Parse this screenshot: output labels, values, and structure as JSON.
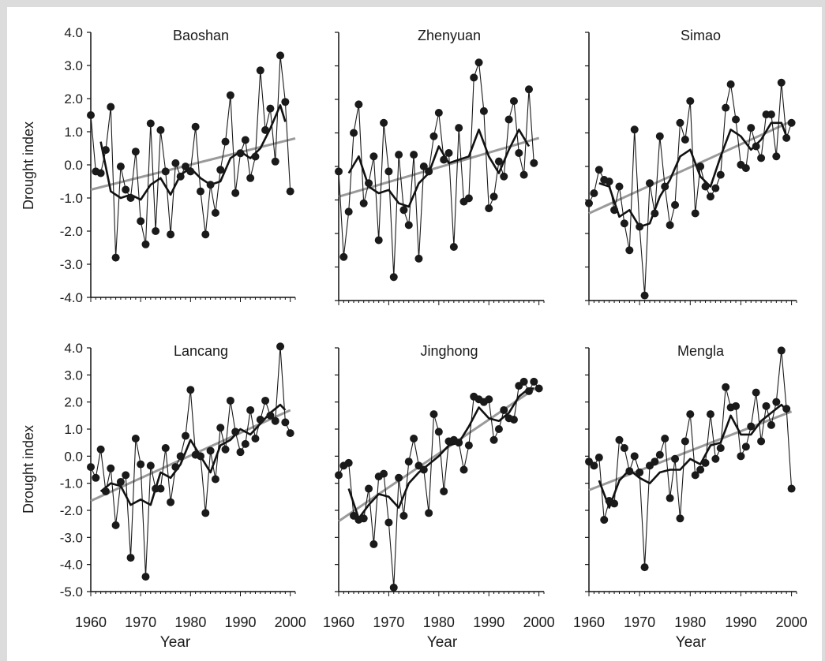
{
  "figure": {
    "y_axis_label": "Drought index",
    "x_axis_label": "Year"
  },
  "chart_data": [
    {
      "type": "line",
      "title": "Baoshan",
      "xlabel": "Year",
      "ylabel": "Drought index",
      "xlim": [
        1960,
        2001
      ],
      "ylim": [
        -4,
        4
      ],
      "x_ticks": [
        1960,
        1970,
        1980,
        1990,
        2000
      ],
      "y_ticks": [
        "4.0",
        "3.0",
        "2.0",
        "1.0",
        "0.0",
        "-1.0",
        "-2.0",
        "-3.0",
        "-4.0"
      ],
      "series": [
        {
          "x": [
            1960,
            1961,
            1962,
            1963,
            1964,
            1965,
            1966,
            1967,
            1968,
            1969,
            1970,
            1971,
            1972,
            1973,
            1974,
            1975,
            1976,
            1977,
            1978,
            1979,
            1980,
            1981,
            1982,
            1983,
            1984,
            1985,
            1986,
            1987,
            1988,
            1989,
            1990,
            1991,
            1992,
            1993,
            1994,
            1995,
            1996,
            1997,
            1998,
            1999,
            2000
          ],
          "y": [
            1.5,
            -0.2,
            -0.25,
            0.45,
            1.75,
            -2.8,
            -0.05,
            -0.75,
            -1.0,
            0.4,
            -1.7,
            -2.4,
            1.25,
            -2.0,
            1.05,
            -0.2,
            -2.1,
            0.05,
            -0.35,
            -0.05,
            -0.2,
            1.15,
            -0.8,
            -2.1,
            -0.6,
            -1.45,
            -0.15,
            0.7,
            2.1,
            -0.85,
            0.35,
            0.75,
            -0.4,
            0.25,
            2.85,
            1.05,
            1.7,
            0.1,
            3.3,
            1.9,
            -0.8
          ]
        },
        {
          "x": [
            1962,
            1964,
            1966,
            1968,
            1970,
            1972,
            1974,
            1976,
            1978,
            1980,
            1982,
            1984,
            1986,
            1988,
            1990,
            1992,
            1994,
            1996,
            1998,
            1999
          ],
          "y": [
            0.7,
            -0.8,
            -1.0,
            -0.9,
            -1.05,
            -0.6,
            -0.4,
            -0.9,
            -0.3,
            -0.1,
            -0.4,
            -0.6,
            -0.5,
            0.2,
            0.4,
            0.2,
            0.5,
            1.1,
            1.8,
            1.3
          ]
        },
        {
          "x": [
            1960,
            2001
          ],
          "y": [
            -0.75,
            0.8
          ]
        }
      ]
    },
    {
      "type": "line",
      "title": "Zhenyuan",
      "xlabel": "Year",
      "ylabel": "Drought index",
      "xlim": [
        1960,
        2001
      ],
      "ylim": [
        -4,
        4
      ],
      "x_ticks": [
        1960,
        1970,
        1980,
        1990,
        2000
      ],
      "y_ticks": [],
      "series": [
        {
          "x": [
            1960,
            1961,
            1962,
            1963,
            1964,
            1965,
            1966,
            1967,
            1968,
            1969,
            1970,
            1971,
            1972,
            1973,
            1974,
            1975,
            1976,
            1977,
            1978,
            1979,
            1980,
            1981,
            1982,
            1983,
            1984,
            1985,
            1986,
            1987,
            1988,
            1989,
            1990,
            1991,
            1992,
            1993,
            1994,
            1995,
            1996,
            1997,
            1998,
            1999
          ],
          "y": [
            -0.15,
            -2.7,
            -1.35,
            1.0,
            1.85,
            -1.1,
            -0.5,
            0.3,
            -2.2,
            1.3,
            -0.15,
            -3.3,
            0.35,
            -1.3,
            -1.75,
            0.35,
            -2.75,
            0.0,
            -0.15,
            0.9,
            1.6,
            0.2,
            0.4,
            -2.4,
            1.15,
            -1.05,
            -0.95,
            2.65,
            3.1,
            1.65,
            -1.25,
            -0.9,
            0.15,
            -0.3,
            1.4,
            1.95,
            0.4,
            -0.25,
            2.3,
            0.1
          ]
        },
        {
          "x": [
            1962,
            1964,
            1966,
            1968,
            1970,
            1972,
            1974,
            1976,
            1978,
            1980,
            1982,
            1984,
            1986,
            1988,
            1990,
            1992,
            1994,
            1996,
            1998
          ],
          "y": [
            -0.2,
            0.3,
            -0.6,
            -0.8,
            -0.7,
            -1.1,
            -1.2,
            -0.5,
            -0.2,
            0.6,
            0.1,
            0.2,
            0.3,
            1.1,
            0.3,
            -0.2,
            0.5,
            1.1,
            0.6
          ]
        },
        {
          "x": [
            1960,
            2000
          ],
          "y": [
            -0.9,
            0.85
          ]
        }
      ]
    },
    {
      "type": "line",
      "title": "Simao",
      "xlabel": "Year",
      "ylabel": "Drought index",
      "xlim": [
        1960,
        2001
      ],
      "ylim": [
        -4,
        4
      ],
      "x_ticks": [
        1960,
        1970,
        1980,
        1990,
        2000
      ],
      "y_ticks": [],
      "series": [
        {
          "x": [
            1960,
            1961,
            1962,
            1963,
            1964,
            1965,
            1966,
            1967,
            1968,
            1969,
            1970,
            1971,
            1972,
            1973,
            1974,
            1975,
            1976,
            1977,
            1978,
            1979,
            1980,
            1981,
            1982,
            1983,
            1984,
            1985,
            1986,
            1987,
            1988,
            1989,
            1990,
            1991,
            1992,
            1993,
            1994,
            1995,
            1996,
            1997,
            1998,
            1999,
            2000
          ],
          "y": [
            -1.1,
            -0.8,
            -0.1,
            -0.4,
            -0.45,
            -1.3,
            -0.6,
            -1.7,
            -2.5,
            1.1,
            -1.8,
            -3.85,
            -0.5,
            -1.4,
            0.9,
            -0.6,
            -1.75,
            -1.15,
            1.3,
            0.8,
            1.95,
            -1.4,
            0.0,
            -0.6,
            -0.9,
            -0.65,
            -0.25,
            1.75,
            2.45,
            1.4,
            0.05,
            -0.05,
            1.15,
            0.6,
            0.25,
            1.55,
            1.55,
            0.3,
            2.5,
            0.85,
            1.3
          ]
        },
        {
          "x": [
            1962,
            1964,
            1966,
            1968,
            1970,
            1972,
            1974,
            1976,
            1978,
            1980,
            1982,
            1984,
            1986,
            1988,
            1990,
            1992,
            1994,
            1996,
            1998,
            1999
          ],
          "y": [
            -0.5,
            -0.6,
            -1.5,
            -1.3,
            -1.8,
            -1.7,
            -0.9,
            -0.4,
            0.3,
            0.5,
            -0.3,
            -0.6,
            0.3,
            1.1,
            0.9,
            0.5,
            0.8,
            1.3,
            1.3,
            0.9
          ]
        },
        {
          "x": [
            1960,
            2000
          ],
          "y": [
            -1.4,
            1.35
          ]
        }
      ]
    },
    {
      "type": "line",
      "title": "Lancang",
      "xlabel": "Year",
      "ylabel": "Drought index",
      "xlim": [
        1960,
        2001
      ],
      "ylim": [
        -5,
        4
      ],
      "x_ticks": [
        1960,
        1970,
        1980,
        1990,
        2000
      ],
      "y_ticks": [
        "4.0",
        "3.0",
        "2.0",
        "1.0",
        "0.0",
        "-1.0",
        "-2.0",
        "-3.0",
        "-4.0",
        "-5.0"
      ],
      "series": [
        {
          "x": [
            1960,
            1961,
            1962,
            1963,
            1964,
            1965,
            1966,
            1967,
            1968,
            1969,
            1970,
            1971,
            1972,
            1973,
            1974,
            1975,
            1976,
            1977,
            1978,
            1979,
            1980,
            1981,
            1982,
            1983,
            1984,
            1985,
            1986,
            1987,
            1988,
            1989,
            1990,
            1991,
            1992,
            1993,
            1994,
            1995,
            1996,
            1997,
            1998,
            1999,
            2000
          ],
          "y": [
            -0.4,
            -0.8,
            0.25,
            -1.3,
            -0.45,
            -2.55,
            -0.95,
            -0.7,
            -3.75,
            0.65,
            -0.3,
            -4.45,
            -0.35,
            -1.2,
            -1.2,
            0.3,
            -1.7,
            -0.4,
            0.0,
            0.75,
            2.45,
            0.05,
            0.0,
            -2.1,
            0.2,
            -0.85,
            1.05,
            0.25,
            2.05,
            0.9,
            0.15,
            0.45,
            1.7,
            0.65,
            1.35,
            2.05,
            1.5,
            1.3,
            4.05,
            1.25,
            0.85
          ]
        },
        {
          "x": [
            1962,
            1964,
            1966,
            1968,
            1970,
            1972,
            1974,
            1976,
            1978,
            1980,
            1982,
            1984,
            1986,
            1988,
            1990,
            1992,
            1994,
            1996,
            1998,
            1999
          ],
          "y": [
            -1.3,
            -1.0,
            -1.1,
            -1.8,
            -1.6,
            -1.8,
            -0.6,
            -0.8,
            -0.3,
            0.6,
            0.0,
            -0.6,
            0.4,
            0.6,
            1.0,
            0.8,
            1.2,
            1.6,
            1.9,
            1.7
          ]
        },
        {
          "x": [
            1960,
            2000
          ],
          "y": [
            -1.65,
            1.7
          ]
        }
      ]
    },
    {
      "type": "line",
      "title": "Jinghong",
      "xlabel": "Year",
      "ylabel": "Drought index",
      "xlim": [
        1960,
        2001
      ],
      "ylim": [
        -5,
        4
      ],
      "x_ticks": [
        1960,
        1970,
        1980,
        1990,
        2000
      ],
      "y_ticks": [],
      "series": [
        {
          "x": [
            1960,
            1961,
            1962,
            1963,
            1964,
            1965,
            1966,
            1967,
            1968,
            1969,
            1970,
            1971,
            1972,
            1973,
            1974,
            1975,
            1976,
            1977,
            1978,
            1979,
            1980,
            1981,
            1982,
            1983,
            1984,
            1985,
            1986,
            1987,
            1988,
            1989,
            1990,
            1991,
            1992,
            1993,
            1994,
            1995,
            1996,
            1997,
            1998,
            1999,
            2000
          ],
          "y": [
            -0.7,
            -0.35,
            -0.25,
            -2.2,
            -2.35,
            -2.3,
            -1.2,
            -3.25,
            -0.75,
            -0.65,
            -2.45,
            -4.85,
            -0.8,
            -2.2,
            -0.2,
            0.65,
            -0.35,
            -0.5,
            -2.1,
            1.55,
            0.9,
            -1.3,
            0.55,
            0.6,
            0.5,
            -0.5,
            0.4,
            2.2,
            2.1,
            2.0,
            2.1,
            0.6,
            1.0,
            1.7,
            1.4,
            1.35,
            2.6,
            2.75,
            2.4,
            2.75,
            2.5
          ]
        },
        {
          "x": [
            1962,
            1964,
            1966,
            1968,
            1970,
            1972,
            1974,
            1976,
            1978,
            1980,
            1982,
            1984,
            1986,
            1988,
            1990,
            1992,
            1994,
            1996,
            1998,
            1999
          ],
          "y": [
            -1.2,
            -2.3,
            -1.8,
            -1.4,
            -1.5,
            -1.9,
            -1.0,
            -0.6,
            -0.3,
            0.0,
            0.4,
            0.5,
            1.1,
            1.8,
            1.4,
            1.3,
            1.6,
            2.2,
            2.5,
            2.5
          ]
        },
        {
          "x": [
            1960,
            2000
          ],
          "y": [
            -2.4,
            2.6
          ]
        }
      ]
    },
    {
      "type": "line",
      "title": "Mengla",
      "xlabel": "Year",
      "ylabel": "Drought index",
      "xlim": [
        1960,
        2001
      ],
      "ylim": [
        -5,
        4
      ],
      "x_ticks": [
        1960,
        1970,
        1980,
        1990,
        2000
      ],
      "y_ticks": [],
      "series": [
        {
          "x": [
            1960,
            1961,
            1962,
            1963,
            1964,
            1965,
            1966,
            1967,
            1968,
            1969,
            1970,
            1971,
            1972,
            1973,
            1974,
            1975,
            1976,
            1977,
            1978,
            1979,
            1980,
            1981,
            1982,
            1983,
            1984,
            1985,
            1986,
            1987,
            1988,
            1989,
            1990,
            1991,
            1992,
            1993,
            1994,
            1995,
            1996,
            1997,
            1998,
            1999,
            2000
          ],
          "y": [
            -0.2,
            -0.35,
            -0.05,
            -2.35,
            -1.65,
            -1.75,
            0.6,
            0.3,
            -0.55,
            0.0,
            -0.6,
            -4.1,
            -0.35,
            -0.2,
            0.05,
            0.65,
            -1.55,
            -0.1,
            -2.3,
            0.55,
            1.55,
            -0.7,
            -0.5,
            -0.25,
            1.55,
            -0.1,
            0.3,
            2.55,
            1.8,
            1.85,
            0.0,
            0.35,
            1.1,
            2.35,
            0.55,
            1.85,
            1.15,
            2.0,
            3.9,
            1.75,
            -1.2
          ]
        },
        {
          "x": [
            1962,
            1964,
            1966,
            1968,
            1970,
            1972,
            1974,
            1976,
            1978,
            1980,
            1982,
            1984,
            1986,
            1988,
            1990,
            1992,
            1994,
            1996,
            1998,
            1999
          ],
          "y": [
            -0.9,
            -1.9,
            -0.9,
            -0.5,
            -0.8,
            -1.0,
            -0.6,
            -0.5,
            -0.5,
            -0.1,
            -0.3,
            0.4,
            0.5,
            1.5,
            0.8,
            0.8,
            1.3,
            1.6,
            1.9,
            1.7
          ]
        },
        {
          "x": [
            1960,
            2000
          ],
          "y": [
            -1.25,
            1.65
          ]
        }
      ]
    }
  ]
}
